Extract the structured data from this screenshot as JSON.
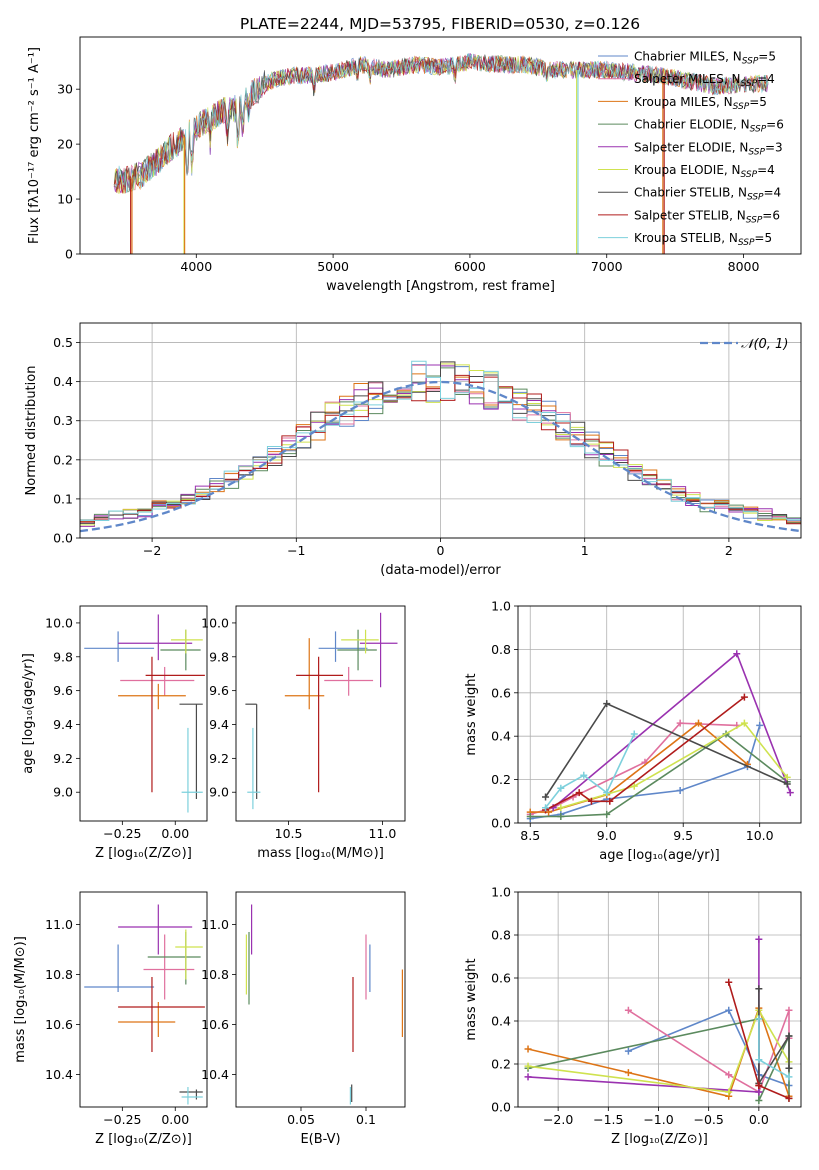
{
  "figure": {
    "title": "PLATE=2244, MJD=53795, FIBERID=0530, z=0.126"
  },
  "series_styles": [
    {
      "name": "Chabrier MILES",
      "color": "#5f87c9",
      "nssp": "5"
    },
    {
      "name": "Salpeter MILES",
      "color": "#e0709e",
      "nssp": "4"
    },
    {
      "name": "Kroupa MILES",
      "color": "#dd7416",
      "nssp": "5"
    },
    {
      "name": "Chabrier ELODIE",
      "color": "#5b8a5e",
      "nssp": "6"
    },
    {
      "name": "Salpeter ELODIE",
      "color": "#9a32b0",
      "nssp": "3"
    },
    {
      "name": "Kroupa ELODIE",
      "color": "#cfe24f",
      "nssp": "4"
    },
    {
      "name": "Chabrier STELIB",
      "color": "#4a4a4a",
      "nssp": "4"
    },
    {
      "name": "Salpeter STELIB",
      "color": "#b01c1c",
      "nssp": "6"
    },
    {
      "name": "Kroupa STELIB",
      "color": "#7dd0dc",
      "nssp": "5"
    }
  ],
  "chart_data": [
    {
      "id": "spectrum",
      "type": "line",
      "title": "PLATE=2244, MJD=53795, FIBERID=0530, z=0.126",
      "xlabel": "wavelength [Angstrom, rest frame]",
      "ylabel": "Flux [fλ10⁻¹⁷ erg cm⁻² s⁻¹ A⁻¹]",
      "xlim": [
        3150,
        8420
      ],
      "ylim": [
        0,
        39.5
      ],
      "xticks": [
        4000,
        5000,
        6000,
        7000,
        8000
      ],
      "yticks": [
        0,
        10,
        20,
        30
      ],
      "legend_position": "top-right",
      "continuum_x": [
        3400,
        3500,
        3600,
        3700,
        3800,
        3900,
        4000,
        4100,
        4200,
        4300,
        4400,
        4500,
        4600,
        4700,
        4800,
        5000,
        5200,
        5400,
        5600,
        5800,
        6000,
        6200,
        6400,
        6600,
        6800,
        7000,
        7200,
        7400,
        7600,
        7800,
        8000,
        8180
      ],
      "continuum_y": [
        13.5,
        13.5,
        14.5,
        16.5,
        19.0,
        21.0,
        23.0,
        24.5,
        26.0,
        26.5,
        29.0,
        31.0,
        32.0,
        32.5,
        32.5,
        33.0,
        34.5,
        33.5,
        34.5,
        34.0,
        35.0,
        34.5,
        34.5,
        33.5,
        33.5,
        33.5,
        33.0,
        32.5,
        31.5,
        30.5,
        31.0,
        31.0
      ],
      "dips": [
        {
          "x": 3520,
          "y": 0,
          "series": "Salpeter STELIB"
        },
        {
          "x": 3530,
          "y": 0,
          "series": "Kroupa MILES"
        },
        {
          "x": 3910,
          "y": 0,
          "series": "Kroupa ELODIE"
        },
        {
          "x": 3915,
          "y": 0,
          "series": "Kroupa MILES"
        },
        {
          "x": 6780,
          "y": 0,
          "series": "Kroupa ELODIE"
        },
        {
          "x": 6790,
          "y": 0,
          "series": "Kroupa STELIB"
        },
        {
          "x": 7410,
          "y": 0,
          "series": "Kroupa MILES"
        },
        {
          "x": 7420,
          "y": 0,
          "series": "Salpeter STELIB"
        }
      ]
    },
    {
      "id": "residuals",
      "type": "area",
      "xlabel": "(data-model)/error",
      "ylabel": "Normed distribution",
      "xlim": [
        -2.5,
        2.5
      ],
      "ylim": [
        0,
        0.55
      ],
      "xticks": [
        -2,
        -1,
        0,
        1,
        2
      ],
      "yticks": [
        0.0,
        0.1,
        0.2,
        0.3,
        0.4,
        0.5
      ],
      "grid": true,
      "bin_width": 0.1,
      "bin_start": -2.5,
      "gaussian_label": "𝒩(0, 1)",
      "gaussian_color": "#5f87c9",
      "legend_position": "top-right"
    },
    {
      "id": "age_vs_Z",
      "type": "scatter",
      "xlabel": "Z [log₁₀(Z/Z⊙)]",
      "ylabel": "age  [log₁₀(age/yr)]",
      "xlim": [
        -0.45,
        0.15
      ],
      "ylim": [
        8.83,
        10.1
      ],
      "xticks": [
        -0.25,
        0.0
      ],
      "yticks": [
        9.0,
        9.2,
        9.4,
        9.6,
        9.8,
        10.0
      ],
      "points": [
        {
          "series": "Chabrier MILES",
          "x": -0.27,
          "y": 9.85,
          "xlo": -0.43,
          "xhi": -0.1,
          "ylo": 9.77,
          "yhi": 9.95
        },
        {
          "series": "Salpeter MILES",
          "x": -0.05,
          "y": 9.66,
          "xlo": -0.26,
          "xhi": 0.09,
          "ylo": 9.57,
          "yhi": 9.74
        },
        {
          "series": "Kroupa MILES",
          "x": -0.08,
          "y": 9.57,
          "xlo": -0.27,
          "xhi": 0.05,
          "ylo": 9.49,
          "yhi": 9.64
        },
        {
          "series": "Chabrier ELODIE",
          "x": 0.05,
          "y": 9.84,
          "xlo": -0.07,
          "xhi": 0.12,
          "ylo": 9.72,
          "yhi": 9.96
        },
        {
          "series": "Salpeter ELODIE",
          "x": -0.08,
          "y": 9.88,
          "xlo": -0.27,
          "xhi": 0.08,
          "ylo": 9.78,
          "yhi": 10.05
        },
        {
          "series": "Kroupa ELODIE",
          "x": 0.05,
          "y": 9.9,
          "xlo": -0.02,
          "xhi": 0.13,
          "ylo": 9.82,
          "yhi": 9.96
        },
        {
          "series": "Chabrier STELIB",
          "x": 0.1,
          "y": 9.52,
          "xlo": 0.02,
          "xhi": 0.13,
          "ylo": 8.96,
          "yhi": 9.52
        },
        {
          "series": "Salpeter STELIB",
          "x": -0.11,
          "y": 9.69,
          "xlo": -0.14,
          "xhi": 0.14,
          "ylo": 9.0,
          "yhi": 9.8
        },
        {
          "series": "Kroupa STELIB",
          "x": 0.06,
          "y": 9.0,
          "xlo": 0.03,
          "xhi": 0.13,
          "ylo": 8.88,
          "yhi": 9.38
        }
      ]
    },
    {
      "id": "age_vs_mass",
      "type": "scatter",
      "xlabel": "mass [log₁₀(M/M⊙)]",
      "ylabel": "",
      "xlim": [
        10.22,
        11.12
      ],
      "ylim": [
        8.83,
        10.1
      ],
      "xticks": [
        10.5,
        11.0
      ],
      "yticks": [
        9.0,
        9.2,
        9.4,
        9.6,
        9.8,
        10.0
      ],
      "points": [
        {
          "series": "Chabrier MILES",
          "x": 10.75,
          "y": 9.85,
          "xlo": 10.66,
          "xhi": 10.92,
          "ylo": 9.77,
          "yhi": 9.95
        },
        {
          "series": "Salpeter MILES",
          "x": 10.82,
          "y": 9.66,
          "xlo": 10.69,
          "xhi": 10.95,
          "ylo": 9.57,
          "yhi": 9.74
        },
        {
          "series": "Kroupa MILES",
          "x": 10.61,
          "y": 9.57,
          "xlo": 10.48,
          "xhi": 10.69,
          "ylo": 9.49,
          "yhi": 9.91
        },
        {
          "series": "Chabrier ELODIE",
          "x": 10.87,
          "y": 9.84,
          "xlo": 10.76,
          "xhi": 10.97,
          "ylo": 9.72,
          "yhi": 9.96
        },
        {
          "series": "Salpeter ELODIE",
          "x": 10.99,
          "y": 9.88,
          "xlo": 10.88,
          "xhi": 11.08,
          "ylo": 9.62,
          "yhi": 10.06
        },
        {
          "series": "Kroupa ELODIE",
          "x": 10.91,
          "y": 9.9,
          "xlo": 10.78,
          "xhi": 10.98,
          "ylo": 9.82,
          "yhi": 9.96
        },
        {
          "series": "Chabrier STELIB",
          "x": 10.33,
          "y": 9.52,
          "xlo": 10.27,
          "xhi": 10.33,
          "ylo": 8.96,
          "yhi": 9.52
        },
        {
          "series": "Salpeter STELIB",
          "x": 10.66,
          "y": 9.69,
          "xlo": 10.54,
          "xhi": 10.79,
          "ylo": 9.0,
          "yhi": 9.8
        },
        {
          "series": "Kroupa STELIB",
          "x": 10.31,
          "y": 9.0,
          "xlo": 10.28,
          "xhi": 10.35,
          "ylo": 8.9,
          "yhi": 9.38
        }
      ]
    },
    {
      "id": "weight_vs_age",
      "type": "line",
      "xlabel": "age  [log₁₀(age/yr)]",
      "ylabel": "mass weight",
      "xlim": [
        8.42,
        10.27
      ],
      "ylim": [
        0,
        1.0
      ],
      "xticks": [
        8.5,
        9.0,
        9.5,
        10.0
      ],
      "yticks": [
        0.0,
        0.2,
        0.4,
        0.6,
        0.8,
        1.0
      ],
      "grid": true,
      "series": [
        {
          "name": "Chabrier MILES",
          "x": [
            8.5,
            8.7,
            9.0,
            9.48,
            9.92,
            10.0
          ],
          "y": [
            0.02,
            0.04,
            0.11,
            0.15,
            0.26,
            0.45
          ]
        },
        {
          "name": "Salpeter MILES",
          "x": [
            8.5,
            8.65,
            8.78,
            9.25,
            9.48,
            9.85
          ],
          "y": [
            0.04,
            0.07,
            0.12,
            0.28,
            0.46,
            0.45
          ]
        },
        {
          "name": "Kroupa MILES",
          "x": [
            8.5,
            8.62,
            9.0,
            9.6,
            9.92
          ],
          "y": [
            0.05,
            0.05,
            0.13,
            0.46,
            0.27
          ]
        },
        {
          "name": "Chabrier ELODIE",
          "x": [
            8.5,
            8.7,
            9.0,
            9.78,
            10.18
          ],
          "y": [
            0.03,
            0.03,
            0.04,
            0.41,
            0.19
          ]
        },
        {
          "name": "Salpeter ELODIE",
          "x": [
            8.65,
            9.85,
            10.2
          ],
          "y": [
            0.07,
            0.78,
            0.14
          ]
        },
        {
          "name": "Kroupa ELODIE",
          "x": [
            8.7,
            9.18,
            9.9,
            10.18
          ],
          "y": [
            0.07,
            0.17,
            0.46,
            0.21
          ]
        },
        {
          "name": "Chabrier STELIB",
          "x": [
            8.6,
            9.0,
            10.18
          ],
          "y": [
            0.12,
            0.55,
            0.18
          ]
        },
        {
          "name": "Salpeter STELIB",
          "x": [
            8.6,
            8.82,
            8.9,
            9.02,
            9.9
          ],
          "y": [
            0.06,
            0.14,
            0.1,
            0.1,
            0.58
          ]
        },
        {
          "name": "Kroupa STELIB",
          "x": [
            8.6,
            8.7,
            8.85,
            9.0,
            9.18
          ],
          "y": [
            0.07,
            0.16,
            0.22,
            0.14,
            0.41
          ]
        }
      ]
    },
    {
      "id": "mass_vs_Z",
      "type": "scatter",
      "xlabel": "Z [log₁₀(Z/Z⊙)]",
      "ylabel": "mass [log₁₀(M/M⊙)]",
      "xlim": [
        -0.45,
        0.15
      ],
      "ylim": [
        10.27,
        11.13
      ],
      "xticks": [
        -0.25,
        0.0
      ],
      "yticks": [
        10.4,
        10.6,
        10.8,
        11.0
      ],
      "points": [
        {
          "series": "Chabrier MILES",
          "x": -0.27,
          "y": 10.75,
          "xlo": -0.43,
          "xhi": -0.1,
          "ylo": 10.73,
          "yhi": 10.92
        },
        {
          "series": "Salpeter MILES",
          "x": -0.05,
          "y": 10.82,
          "xlo": -0.15,
          "xhi": 0.09,
          "ylo": 10.7,
          "yhi": 10.96
        },
        {
          "series": "Kroupa MILES",
          "x": -0.08,
          "y": 10.61,
          "xlo": -0.27,
          "xhi": 0.0,
          "ylo": 10.55,
          "yhi": 10.69
        },
        {
          "series": "Chabrier ELODIE",
          "x": 0.05,
          "y": 10.87,
          "xlo": -0.13,
          "xhi": 0.12,
          "ylo": 10.76,
          "yhi": 10.97
        },
        {
          "series": "Salpeter ELODIE",
          "x": -0.08,
          "y": 10.99,
          "xlo": -0.27,
          "xhi": 0.08,
          "ylo": 10.88,
          "yhi": 11.08
        },
        {
          "series": "Kroupa ELODIE",
          "x": 0.05,
          "y": 10.91,
          "xlo": 0.0,
          "xhi": 0.13,
          "ylo": 10.78,
          "yhi": 10.98
        },
        {
          "series": "Chabrier STELIB",
          "x": 0.1,
          "y": 10.33,
          "xlo": 0.02,
          "xhi": 0.13,
          "ylo": 10.3,
          "yhi": 10.34
        },
        {
          "series": "Salpeter STELIB",
          "x": -0.11,
          "y": 10.67,
          "xlo": -0.27,
          "xhi": 0.14,
          "ylo": 10.49,
          "yhi": 10.79
        },
        {
          "series": "Kroupa STELIB",
          "x": 0.06,
          "y": 10.31,
          "xlo": 0.03,
          "xhi": 0.13,
          "ylo": 10.28,
          "yhi": 10.35
        }
      ]
    },
    {
      "id": "mass_vs_EBV",
      "type": "scatter",
      "xlabel": "E(B-V)",
      "ylabel": "",
      "xlim": [
        0.0,
        0.13
      ],
      "ylim": [
        10.27,
        11.13
      ],
      "xticks": [
        0.05,
        0.1
      ],
      "yticks": [
        10.4,
        10.6,
        10.8,
        11.0
      ],
      "points": [
        {
          "series": "Chabrier MILES",
          "x": 0.103,
          "y": 10.75,
          "xlo": 0.103,
          "xhi": 0.103,
          "ylo": 10.73,
          "yhi": 10.92
        },
        {
          "series": "Salpeter MILES",
          "x": 0.1,
          "y": 10.82,
          "xlo": 0.1,
          "xhi": 0.1,
          "ylo": 10.7,
          "yhi": 10.96
        },
        {
          "series": "Kroupa MILES",
          "x": 0.128,
          "y": 10.61,
          "xlo": 0.128,
          "xhi": 0.128,
          "ylo": 10.55,
          "yhi": 10.82
        },
        {
          "series": "Chabrier ELODIE",
          "x": 0.01,
          "y": 10.87,
          "xlo": 0.01,
          "xhi": 0.01,
          "ylo": 10.68,
          "yhi": 10.97
        },
        {
          "series": "Salpeter ELODIE",
          "x": 0.012,
          "y": 10.99,
          "xlo": 0.012,
          "xhi": 0.012,
          "ylo": 10.88,
          "yhi": 11.08
        },
        {
          "series": "Kroupa ELODIE",
          "x": 0.008,
          "y": 10.91,
          "xlo": 0.008,
          "xhi": 0.008,
          "ylo": 10.72,
          "yhi": 10.96
        },
        {
          "series": "Chabrier STELIB",
          "x": 0.089,
          "y": 10.33,
          "xlo": 0.089,
          "xhi": 0.089,
          "ylo": 10.29,
          "yhi": 10.36
        },
        {
          "series": "Salpeter STELIB",
          "x": 0.09,
          "y": 10.67,
          "xlo": 0.09,
          "xhi": 0.09,
          "ylo": 10.49,
          "yhi": 10.79
        },
        {
          "series": "Kroupa STELIB",
          "x": 0.088,
          "y": 10.31,
          "xlo": 0.088,
          "xhi": 0.088,
          "ylo": 10.28,
          "yhi": 10.35
        }
      ]
    },
    {
      "id": "weight_vs_Z",
      "type": "line",
      "xlabel": "Z [log₁₀(Z/Z⊙)]",
      "ylabel": "mass weight",
      "xlim": [
        -2.4,
        0.42
      ],
      "ylim": [
        0,
        1.0
      ],
      "xticks": [
        -2.0,
        -1.5,
        -1.0,
        -0.5,
        0.0
      ],
      "yticks": [
        0.0,
        0.2,
        0.4,
        0.6,
        0.8,
        1.0
      ],
      "grid": true,
      "series": [
        {
          "name": "Chabrier MILES",
          "x": [
            -1.3,
            -0.3,
            0.0,
            0.3
          ],
          "y": [
            0.26,
            0.45,
            0.15,
            0.1
          ]
        },
        {
          "name": "Salpeter MILES",
          "x": [
            -1.3,
            -0.3,
            0.0,
            0.3,
            0.3
          ],
          "y": [
            0.45,
            0.15,
            0.07,
            0.45,
            0.32
          ]
        },
        {
          "name": "Kroupa MILES",
          "x": [
            -2.3,
            -1.3,
            -0.3,
            0.0,
            0.3
          ],
          "y": [
            0.27,
            0.16,
            0.05,
            0.46,
            0.05
          ]
        },
        {
          "name": "Chabrier ELODIE",
          "x": [
            -2.3,
            0.0,
            0.0,
            0.3,
            0.3
          ],
          "y": [
            0.18,
            0.41,
            0.03,
            0.33,
            0.04
          ]
        },
        {
          "name": "Salpeter ELODIE",
          "x": [
            -2.3,
            0.0,
            0.0
          ],
          "y": [
            0.14,
            0.07,
            0.78
          ]
        },
        {
          "name": "Kroupa ELODIE",
          "x": [
            -2.3,
            -0.3,
            0.0,
            0.3
          ],
          "y": [
            0.19,
            0.07,
            0.45,
            0.21
          ]
        },
        {
          "name": "Chabrier STELIB",
          "x": [
            0.0,
            0.0,
            0.3,
            0.3
          ],
          "y": [
            0.55,
            0.11,
            0.33,
            0.18
          ]
        },
        {
          "name": "Salpeter STELIB",
          "x": [
            -0.3,
            0.0,
            0.0,
            0.3
          ],
          "y": [
            0.58,
            0.1,
            0.1,
            0.04
          ]
        },
        {
          "name": "Kroupa STELIB",
          "x": [
            0.0,
            0.0,
            0.3
          ],
          "y": [
            0.41,
            0.22,
            0.14
          ]
        }
      ]
    }
  ]
}
